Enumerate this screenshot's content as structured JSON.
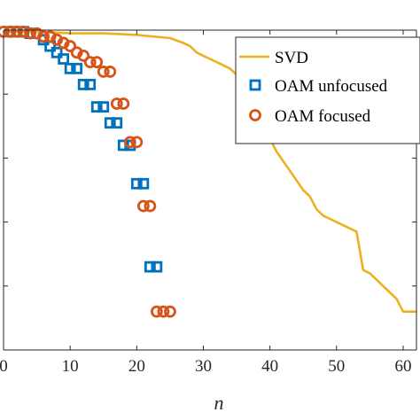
{
  "chart_data": {
    "type": "scatter",
    "xlabel": "n",
    "ylabel": "",
    "title": "",
    "xlim": [
      0,
      62
    ],
    "ylim": [
      0,
      1
    ],
    "x_ticks": [
      0,
      10,
      20,
      30,
      40,
      50,
      60
    ],
    "x_tick_labels": [
      "0",
      "10",
      "20",
      "30",
      "40",
      "50",
      "60"
    ],
    "grid": false,
    "legend_position": "top-right",
    "series": [
      {
        "name": "SVD",
        "kind": "line",
        "color": "#EDB120",
        "x": [
          0,
          5,
          10,
          15,
          20,
          25,
          27,
          28,
          29,
          30,
          31,
          32,
          33,
          34,
          35,
          36,
          37,
          38,
          39,
          40,
          41,
          42,
          43,
          44,
          45,
          46,
          47,
          48,
          49,
          50,
          51,
          52,
          53,
          54,
          55,
          56,
          57,
          58,
          59,
          60,
          61,
          62
        ],
        "y": [
          0.995,
          0.995,
          0.99,
          0.99,
          0.985,
          0.975,
          0.96,
          0.95,
          0.93,
          0.92,
          0.91,
          0.9,
          0.89,
          0.88,
          0.86,
          0.84,
          0.8,
          0.76,
          0.7,
          0.66,
          0.62,
          0.59,
          0.56,
          0.53,
          0.5,
          0.48,
          0.44,
          0.42,
          0.41,
          0.4,
          0.39,
          0.38,
          0.37,
          0.25,
          0.24,
          0.22,
          0.2,
          0.18,
          0.16,
          0.12,
          0.12,
          0.12
        ]
      },
      {
        "name": "OAM unfocused",
        "kind": "square-markers",
        "color": "#0072BD",
        "x": [
          1,
          2,
          3,
          4,
          6,
          7,
          8,
          9,
          10,
          11,
          12,
          13,
          14,
          15,
          16,
          17,
          18,
          19,
          20,
          21,
          22,
          23
        ],
        "y": [
          0.995,
          0.995,
          0.995,
          0.99,
          0.97,
          0.95,
          0.93,
          0.91,
          0.88,
          0.88,
          0.83,
          0.83,
          0.76,
          0.76,
          0.71,
          0.71,
          0.64,
          0.64,
          0.52,
          0.52,
          0.26,
          0.26
        ]
      },
      {
        "name": "OAM focused",
        "kind": "circle-markers",
        "color": "#D95319",
        "x": [
          0,
          1,
          2,
          3,
          4,
          5,
          6,
          7,
          8,
          9,
          10,
          11,
          12,
          13,
          14,
          15,
          16,
          17,
          18,
          19,
          20,
          21,
          22,
          23,
          24,
          25
        ],
        "y": [
          0.995,
          0.995,
          0.995,
          0.995,
          0.99,
          0.99,
          0.98,
          0.98,
          0.97,
          0.96,
          0.95,
          0.93,
          0.92,
          0.9,
          0.9,
          0.87,
          0.87,
          0.77,
          0.77,
          0.65,
          0.65,
          0.45,
          0.45,
          0.12,
          0.12,
          0.12
        ]
      }
    ]
  }
}
